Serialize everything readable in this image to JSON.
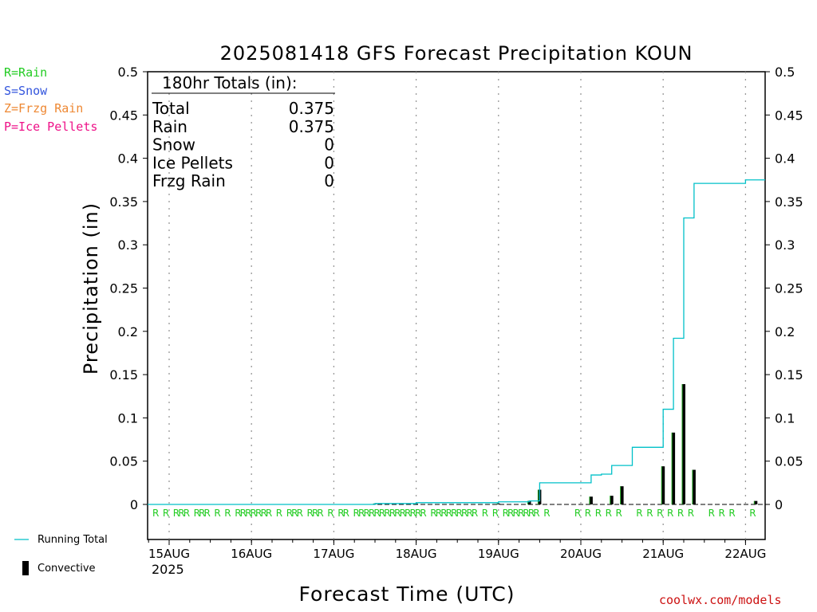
{
  "chart_data": {
    "type": "line",
    "title": "2025081418 GFS Forecast Precipitation KOUN",
    "xlabel": "Forecast Time (UTC)",
    "ylabel": "Precipitation (in)",
    "ylim": [
      0,
      0.5
    ],
    "yticks": [
      "0",
      "0.05",
      "0.1",
      "0.15",
      "0.2",
      "0.25",
      "0.3",
      "0.35",
      "0.4",
      "0.45",
      "0.5"
    ],
    "xlim_hours": [
      0,
      181
    ],
    "x_ticks": [
      {
        "label": "15AUG",
        "hour": 6
      },
      {
        "label": "16AUG",
        "hour": 30
      },
      {
        "label": "17AUG",
        "hour": 54
      },
      {
        "label": "18AUG",
        "hour": 78
      },
      {
        "label": "19AUG",
        "hour": 102
      },
      {
        "label": "20AUG",
        "hour": 126
      },
      {
        "label": "21AUG",
        "hour": 150
      },
      {
        "label": "22AUG",
        "hour": 174
      }
    ],
    "year_label": "2025",
    "grid": "vertical dotted at day ticks",
    "series": [
      {
        "name": "Running Total",
        "color": "#00c0c8",
        "step_hours": [
          0,
          66,
          78,
          102,
          111,
          114,
          123,
          126,
          129,
          132,
          135,
          141,
          147,
          150,
          153,
          156,
          159,
          162,
          165,
          168,
          171,
          174,
          177,
          180
        ],
        "step_values": [
          0,
          0.001,
          0.002,
          0.003,
          0.004,
          0.025,
          0.025,
          0.025,
          0.034,
          0.035,
          0.045,
          0.066,
          0.066,
          0.11,
          0.192,
          0.331,
          0.371,
          0.371,
          0.371,
          0.371,
          0.371,
          0.375,
          0.375,
          0.375
        ]
      },
      {
        "name": "Convective",
        "type": "bar",
        "color": "#000000",
        "hours": [
          66,
          78,
          102,
          111,
          114,
          129,
          135,
          138,
          150,
          153,
          156,
          159,
          177
        ],
        "values": [
          0.001,
          0.001,
          0.001,
          0.004,
          0.017,
          0.009,
          0.01,
          0.021,
          0.044,
          0.083,
          0.139,
          0.04,
          0.004
        ]
      }
    ],
    "ptype_markers": {
      "letter": "R",
      "color": "#22cc22",
      "hours": [
        0,
        1.5,
        3,
        4.5,
        6,
        9,
        12,
        13.5,
        15,
        18,
        19.5,
        21,
        24,
        27,
        30,
        31.5,
        33,
        34.5,
        36,
        37.5,
        39,
        42,
        45,
        46.5,
        48,
        51,
        52.5,
        54,
        57,
        60,
        61.5,
        64.5,
        66,
        67.5,
        69,
        70.5,
        72,
        73.5,
        75,
        76.5,
        78,
        79.5,
        81,
        82.5,
        84,
        87,
        88.5,
        90,
        91.5,
        93,
        94.5,
        96,
        97.5,
        99,
        102,
        105,
        108,
        109.5,
        111,
        112.5,
        114,
        115.5,
        117,
        120,
        129,
        132,
        135,
        138,
        141,
        147,
        150,
        153,
        156,
        159,
        162,
        168,
        171,
        174,
        180
      ]
    },
    "totals_box": {
      "header": "180hr Totals (in):",
      "rows": [
        {
          "label": "Total",
          "value": "0.375"
        },
        {
          "label": "Rain",
          "value": "0.375"
        },
        {
          "label": "Snow",
          "value": "0"
        },
        {
          "label": "Ice Pellets",
          "value": "0"
        },
        {
          "label": "Frzg Rain",
          "value": "0"
        }
      ]
    }
  },
  "ptype_legend": [
    {
      "text": "R=Rain",
      "color": "#22cc22"
    },
    {
      "text": "S=Snow",
      "color": "#3355dd"
    },
    {
      "text": "Z=Frzg Rain",
      "color": "#ee8833"
    },
    {
      "text": "P=Ice Pellets",
      "color": "#ee1188"
    }
  ],
  "bottom_legend": {
    "running_total": "Running Total",
    "convective": "Convective"
  },
  "credit": "coolwx.com/models"
}
